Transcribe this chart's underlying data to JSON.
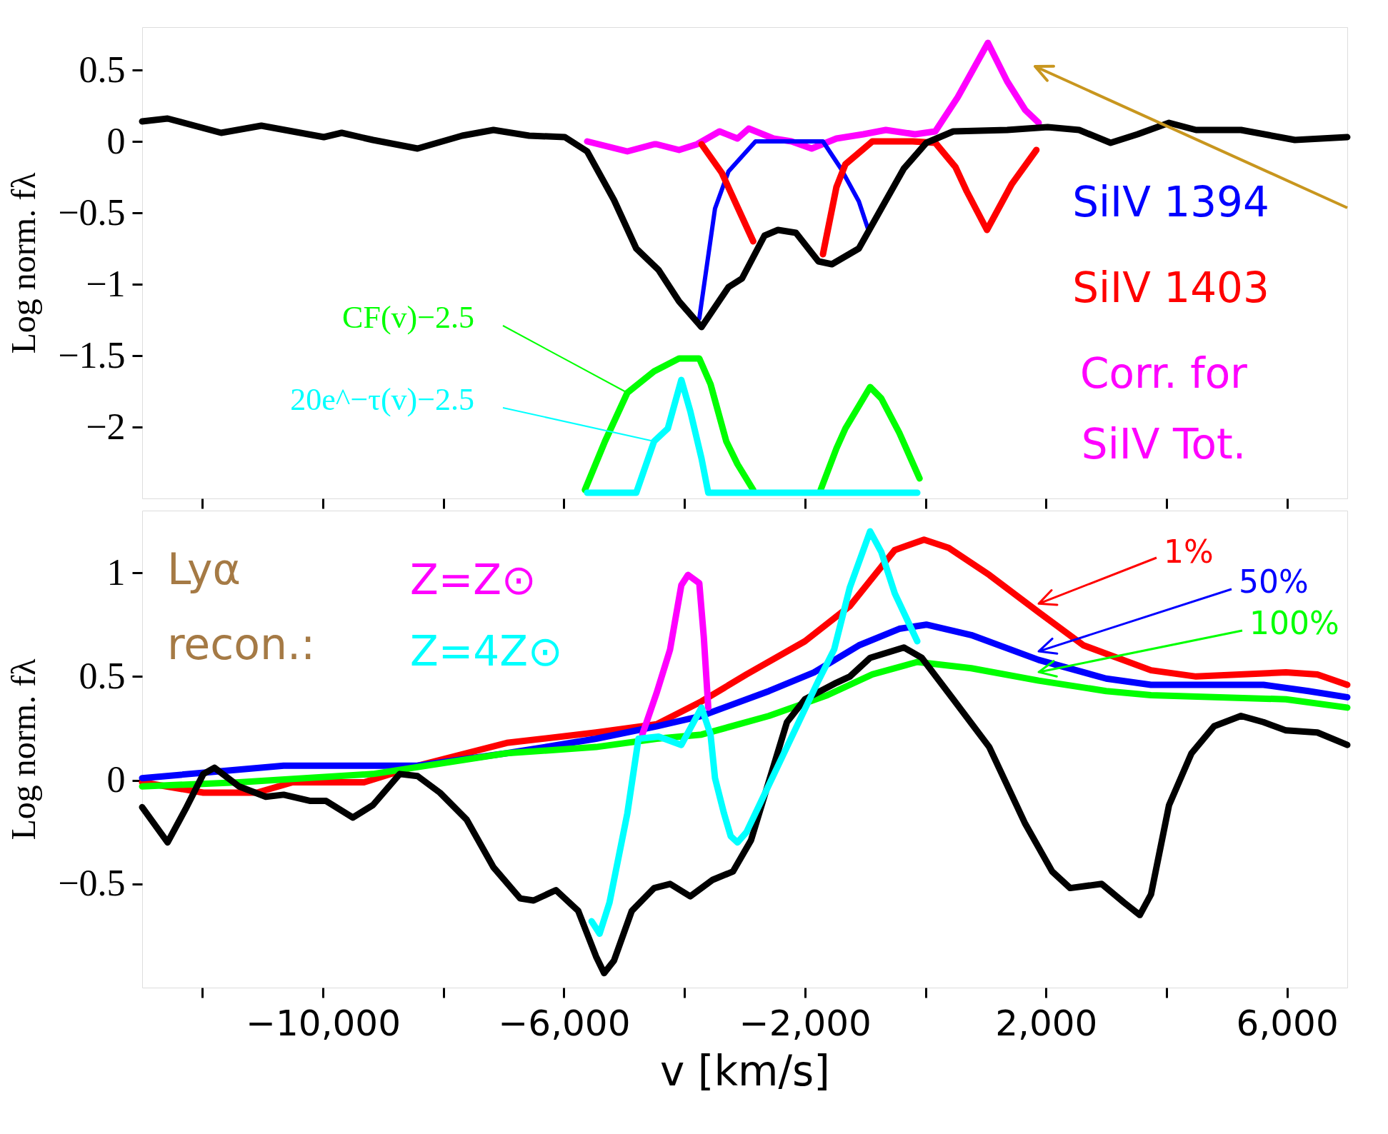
{
  "chart_data": [
    {
      "type": "line",
      "ylabel": "Log norm. fλ",
      "xlim": [
        -13000,
        7000
      ],
      "ylim": [
        -2.5,
        0.8
      ],
      "tick_labels": "y",
      "xticks": [
        {
          "value": -12000,
          "label": null
        },
        {
          "value": -10000,
          "label": null
        },
        {
          "value": -8000,
          "label": null
        },
        {
          "value": -6000,
          "label": null
        },
        {
          "value": -4000,
          "label": null
        },
        {
          "value": -2000,
          "label": null
        },
        {
          "value": 0,
          "label": null
        },
        {
          "value": 2000,
          "label": null
        },
        {
          "value": 4000,
          "label": null
        },
        {
          "value": 6000,
          "label": null
        }
      ],
      "yticks": [
        -2,
        -1.5,
        -1,
        -0.5,
        0,
        0.5
      ],
      "series": [
        {
          "name": "Corr. for SiIV Tot.",
          "color": "#ff00ff",
          "x": [
            -5615,
            -4948,
            -4504,
            -4463,
            -4090,
            -3791,
            -3418,
            -3120,
            -2933,
            -2523,
            -2224,
            -1889,
            -1478,
            -1031,
            -658,
            -173,
            163,
            536,
            760,
            1036,
            1356,
            1655,
            1879
          ],
          "values": [
            0.0,
            -0.07,
            -0.02,
            -0.02,
            -0.06,
            -0.02,
            0.07,
            0.02,
            0.09,
            0.02,
            0.0,
            -0.05,
            0.02,
            0.05,
            0.08,
            0.05,
            0.07,
            0.31,
            0.48,
            0.69,
            0.42,
            0.22,
            0.13
          ]
        },
        {
          "name": "SiIV 1394",
          "color": "#0000ff",
          "x": [
            -3754,
            -3493,
            -3269,
            -2821,
            -1702,
            -1404,
            -1106,
            -956
          ],
          "values": [
            -1.24,
            -0.47,
            -0.21,
            0.0,
            0.0,
            -0.19,
            -0.42,
            -0.61
          ]
        },
        {
          "name": "SiIV 1403",
          "color": "#ff0000",
          "x": [
            -3717,
            -3381,
            -3120,
            -2859,
            -2300,
            -1702,
            -1478,
            -1329,
            -882,
            -212,
            163,
            498,
            685,
            1020,
            1431,
            1841
          ],
          "values": [
            -0.02,
            -0.22,
            -0.46,
            -0.7,
            null,
            -0.79,
            -0.32,
            -0.16,
            0.0,
            0.0,
            -0.01,
            -0.18,
            -0.35,
            -0.62,
            -0.3,
            -0.06
          ]
        },
        {
          "name": "CF(v)−2.5",
          "color": "#00ff00",
          "x": [
            -5652,
            -5319,
            -4948,
            -4504,
            -4090,
            -3754,
            -3567,
            -3306,
            -3120,
            -2859,
            -2300,
            -1740,
            -1478,
            -1329,
            -919,
            -733,
            -435,
            -98
          ],
          "values": [
            -2.44,
            -2.1,
            -1.76,
            -1.61,
            -1.52,
            -1.52,
            -1.7,
            -2.1,
            -2.26,
            -2.44,
            null,
            -2.44,
            -2.15,
            -2.01,
            -1.72,
            -1.8,
            -2.04,
            -2.36
          ]
        },
        {
          "name": "20e^−τ(v)−2.5",
          "color": "#00ffff",
          "x": [
            -5615,
            -4800,
            -4504,
            -4276,
            -4052,
            -3903,
            -3717,
            -3605,
            -136
          ],
          "values": [
            -2.46,
            -2.46,
            -2.1,
            -2.01,
            -1.67,
            -1.89,
            -2.22,
            -2.46,
            -2.46
          ]
        },
        {
          "color": "#000000",
          "x": [
            -13000,
            -12578,
            -11689,
            -11022,
            -9985,
            -9689,
            -9170,
            -8430,
            -7689,
            -7170,
            -6578,
            -5985,
            -5615,
            -5170,
            -4800,
            -4430,
            -4090,
            -3717,
            -3269,
            -3045,
            -2672,
            -2448,
            -2150,
            -1777,
            -1553,
            -1106,
            -733,
            -359,
            14,
            461,
            1356,
            2028,
            2550,
            3072,
            3520,
            4042,
            4490,
            5236,
            6131,
            7000
          ],
          "values": [
            0.14,
            0.16,
            0.06,
            0.11,
            0.03,
            0.06,
            0.01,
            -0.05,
            0.04,
            0.08,
            0.04,
            0.03,
            -0.07,
            -0.41,
            -0.75,
            -0.9,
            -1.12,
            -1.3,
            -1.02,
            -0.96,
            -0.66,
            -0.62,
            -0.64,
            -0.84,
            -0.86,
            -0.75,
            -0.47,
            -0.19,
            -0.01,
            0.07,
            0.08,
            0.1,
            0.08,
            -0.01,
            0.05,
            0.13,
            0.08,
            0.08,
            0.01,
            0.03
          ]
        }
      ]
    },
    {
      "type": "line",
      "ylabel": "Log norm. fλ",
      "xlabel": "v [km/s]",
      "xlim": [
        -13000,
        7000
      ],
      "ylim": [
        -1,
        1.3
      ],
      "xticks": [
        {
          "value": -12000,
          "label": null
        },
        {
          "value": -10000,
          "label": "−10,000"
        },
        {
          "value": -8000,
          "label": null
        },
        {
          "value": -6000,
          "label": "−6,000"
        },
        {
          "value": -4000,
          "label": null
        },
        {
          "value": -2000,
          "label": "−2,000"
        },
        {
          "value": 0,
          "label": null
        },
        {
          "value": 2000,
          "label": "2,000"
        },
        {
          "value": 4000,
          "label": null
        },
        {
          "value": 6000,
          "label": "6,000"
        }
      ],
      "yticks": [
        -0.5,
        0,
        0.5,
        1
      ],
      "annotations": [
        "Lyα recon.:"
      ],
      "series": [
        {
          "name": "1%",
          "color": "#ff0000",
          "x": [
            -13000,
            -11985,
            -11096,
            -10504,
            -9318,
            -8430,
            -6948,
            -5467,
            -4463,
            -3717,
            -2970,
            -2001,
            -1255,
            -509,
            -24,
            386,
            1058,
            1879,
            2625,
            3743,
            4490,
            5982,
            6504,
            7000
          ],
          "values": [
            -0.01,
            -0.06,
            -0.06,
            -0.01,
            -0.01,
            0.07,
            0.18,
            0.23,
            0.27,
            0.38,
            0.51,
            0.67,
            0.84,
            1.11,
            1.16,
            1.12,
            0.99,
            0.81,
            0.65,
            0.53,
            0.5,
            0.52,
            0.51,
            0.46
          ]
        },
        {
          "name": "50%",
          "color": "#0000ff",
          "x": [
            -13000,
            -10652,
            -8430,
            -6948,
            -5467,
            -4463,
            -3717,
            -2597,
            -1851,
            -1106,
            -435,
            14,
            760,
            1879,
            2998,
            3743,
            5609,
            6355,
            7000
          ],
          "values": [
            0.01,
            0.07,
            0.07,
            0.13,
            0.2,
            0.26,
            0.31,
            0.43,
            0.52,
            0.65,
            0.73,
            0.75,
            0.7,
            0.58,
            0.49,
            0.46,
            0.46,
            0.43,
            0.4
          ]
        },
        {
          "name": "100%",
          "color": "#00ff00",
          "x": [
            -13000,
            -11393,
            -9170,
            -6948,
            -5467,
            -4463,
            -3717,
            -2597,
            -1628,
            -882,
            -136,
            760,
            1879,
            2998,
            3743,
            5982,
            7000
          ],
          "values": [
            -0.03,
            -0.01,
            0.03,
            0.13,
            0.16,
            0.2,
            0.22,
            0.31,
            0.41,
            0.51,
            0.57,
            0.54,
            0.48,
            0.43,
            0.41,
            0.39,
            0.35
          ]
        },
        {
          "color": "#000000",
          "x": [
            -13000,
            -12578,
            -12281,
            -11985,
            -11800,
            -11393,
            -10948,
            -10652,
            -10207,
            -9948,
            -9504,
            -9170,
            -8726,
            -8430,
            -8059,
            -7615,
            -7170,
            -6726,
            -6504,
            -6133,
            -5763,
            -5467,
            -5333,
            -5170,
            -4874,
            -4504,
            -4239,
            -3903,
            -3530,
            -3194,
            -2896,
            -2635,
            -2299,
            -2001,
            -1478,
            -1255,
            -919,
            -359,
            -61,
            461,
            1058,
            1655,
            2102,
            2401,
            2923,
            3296,
            3557,
            3743,
            4042,
            4415,
            4788,
            5236,
            5609,
            5982,
            6504,
            7000
          ],
          "values": [
            -0.13,
            -0.3,
            -0.14,
            0.03,
            0.06,
            -0.03,
            -0.08,
            -0.07,
            -0.1,
            -0.1,
            -0.18,
            -0.12,
            0.03,
            0.02,
            -0.06,
            -0.19,
            -0.42,
            -0.57,
            -0.58,
            -0.53,
            -0.63,
            -0.85,
            -0.93,
            -0.87,
            -0.63,
            -0.52,
            -0.5,
            -0.56,
            -0.48,
            -0.44,
            -0.29,
            -0.04,
            0.28,
            0.39,
            0.47,
            0.5,
            0.59,
            0.64,
            0.59,
            0.39,
            0.16,
            -0.21,
            -0.44,
            -0.52,
            -0.5,
            -0.59,
            -0.65,
            -0.55,
            -0.12,
            0.13,
            0.26,
            0.31,
            0.28,
            0.24,
            0.23,
            0.17
          ]
        },
        {
          "name": "Z=Z⊙",
          "color": "#ff00ff",
          "x": [
            -4700,
            -4463,
            -4239,
            -4052,
            -3941,
            -3754,
            -3679,
            -3605
          ],
          "values": [
            0.22,
            0.42,
            0.63,
            0.94,
            0.99,
            0.95,
            0.69,
            0.35
          ]
        },
        {
          "name": "Z=4Z⊙",
          "color": "#00ffff",
          "x": [
            -5541,
            -5408,
            -5244,
            -4948,
            -4763,
            -4430,
            -4052,
            -3717,
            -3567,
            -3493,
            -3344,
            -3232,
            -3120,
            -2970,
            -1777,
            -1516,
            -1255,
            -919,
            -733,
            -509,
            -136
          ],
          "values": [
            -0.68,
            -0.74,
            -0.59,
            -0.16,
            0.2,
            0.21,
            0.17,
            0.35,
            0.22,
            0.01,
            -0.16,
            -0.27,
            -0.3,
            -0.25,
            0.48,
            0.63,
            0.93,
            1.2,
            1.1,
            0.9,
            0.67
          ]
        }
      ]
    }
  ]
}
